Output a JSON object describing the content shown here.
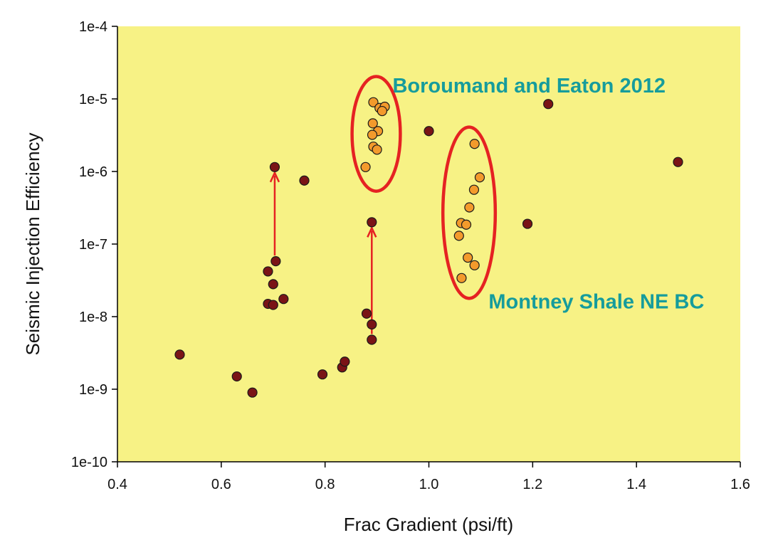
{
  "chart_data": {
    "type": "scatter",
    "xlabel": "Frac Gradient (psi/ft)",
    "ylabel": "Seismic Injection Efficiency",
    "xlim": [
      0.4,
      1.6
    ],
    "ylim": [
      1e-10,
      0.0001
    ],
    "yscale": "log",
    "grid": false,
    "x_ticks": [
      "0.4",
      "0.6",
      "0.8",
      "1.0",
      "1.2",
      "1.4",
      "1.6"
    ],
    "y_ticks": [
      "1e-10",
      "1e-9",
      "1e-8",
      "1e-7",
      "1e-6",
      "1e-5",
      "1e-4"
    ],
    "background_color": "#f7f285",
    "series": [
      {
        "color": "#7a1416",
        "points": [
          {
            "x": 0.52,
            "y": 3e-09
          },
          {
            "x": 0.63,
            "y": 1.5e-09
          },
          {
            "x": 0.66,
            "y": 9e-10
          },
          {
            "x": 0.69,
            "y": 4.2e-08
          },
          {
            "x": 0.7,
            "y": 2.8e-08
          },
          {
            "x": 0.69,
            "y": 1.5e-08
          },
          {
            "x": 0.7,
            "y": 1.45e-08
          },
          {
            "x": 0.72,
            "y": 1.75e-08
          },
          {
            "x": 0.705,
            "y": 5.8e-08
          },
          {
            "x": 0.703,
            "y": 1.15e-06
          },
          {
            "x": 0.76,
            "y": 7.5e-07
          },
          {
            "x": 0.795,
            "y": 1.6e-09
          },
          {
            "x": 0.833,
            "y": 2e-09
          },
          {
            "x": 0.838,
            "y": 2.4e-09
          },
          {
            "x": 0.88,
            "y": 1.1e-08
          },
          {
            "x": 0.89,
            "y": 7.8e-09
          },
          {
            "x": 0.89,
            "y": 4.8e-09
          },
          {
            "x": 0.89,
            "y": 2e-07
          },
          {
            "x": 1.0,
            "y": 3.6e-06
          },
          {
            "x": 1.19,
            "y": 1.9e-07
          },
          {
            "x": 1.23,
            "y": 8.5e-06
          },
          {
            "x": 1.48,
            "y": 1.35e-06
          }
        ]
      },
      {
        "color": "#f39a2c",
        "points": [
          {
            "x": 0.893,
            "y": 9e-06
          },
          {
            "x": 0.905,
            "y": 7.5e-06
          },
          {
            "x": 0.915,
            "y": 7.8e-06
          },
          {
            "x": 0.91,
            "y": 6.8e-06
          },
          {
            "x": 0.892,
            "y": 4.6e-06
          },
          {
            "x": 0.902,
            "y": 3.6e-06
          },
          {
            "x": 0.891,
            "y": 3.2e-06
          },
          {
            "x": 0.893,
            "y": 2.2e-06
          },
          {
            "x": 0.9,
            "y": 2e-06
          },
          {
            "x": 0.878,
            "y": 1.15e-06
          }
        ]
      },
      {
        "color": "#f39a2c",
        "points": [
          {
            "x": 1.088,
            "y": 2.4e-06
          },
          {
            "x": 1.098,
            "y": 8.3e-07
          },
          {
            "x": 1.087,
            "y": 5.6e-07
          },
          {
            "x": 1.078,
            "y": 3.2e-07
          },
          {
            "x": 1.062,
            "y": 1.95e-07
          },
          {
            "x": 1.072,
            "y": 1.85e-07
          },
          {
            "x": 1.058,
            "y": 1.3e-07
          },
          {
            "x": 1.075,
            "y": 6.5e-08
          },
          {
            "x": 1.088,
            "y": 5.1e-08
          },
          {
            "x": 1.063,
            "y": 3.4e-08
          }
        ]
      }
    ],
    "arrows": [
      {
        "color": "#e52222",
        "x": 0.703,
        "y_from": 5.8e-08,
        "y_to": 1.15e-06
      },
      {
        "color": "#e52222",
        "x": 0.89,
        "y_from": 4.8e-09,
        "y_to": 2e-07
      }
    ],
    "ellipses": [
      {
        "color": "#e52222",
        "cx": 0.8985,
        "cy": 3.3e-06,
        "rx": 0.0465,
        "ry_decades": 0.79
      },
      {
        "color": "#e52222",
        "cx": 1.0775,
        "cy": 2.7e-07,
        "rx": 0.0505,
        "ry_decades": 1.18
      }
    ],
    "annotations": [
      {
        "text": "Boroumand and Eaton 2012",
        "color": "#169c9c",
        "x": 0.93,
        "y": 1.22e-05
      },
      {
        "text": "Montney Shale NE BC",
        "color": "#169c9c",
        "x": 1.115,
        "y": 1.3e-08
      }
    ]
  }
}
